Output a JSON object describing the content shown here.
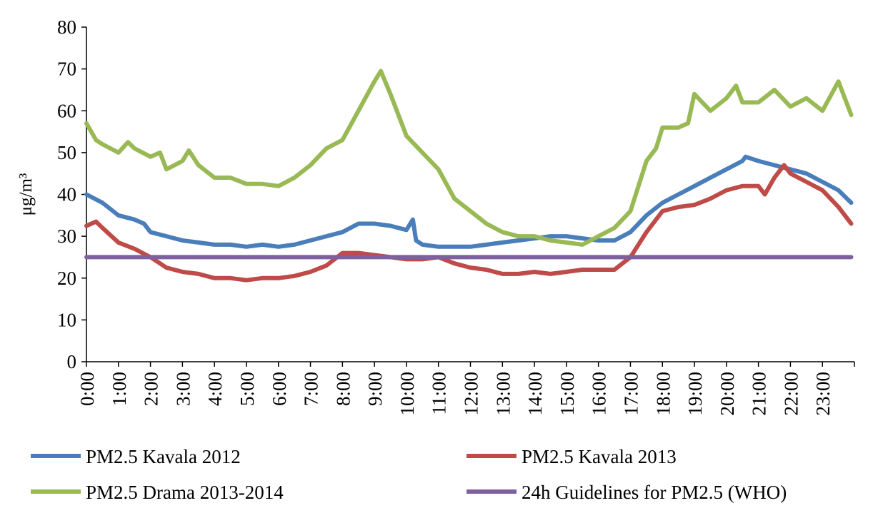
{
  "chart_data": {
    "type": "line",
    "xlabel": "",
    "ylabel": "μg/m³",
    "ylim": [
      0,
      80
    ],
    "xlim": [
      0,
      24
    ],
    "y_ticks": [
      "0",
      "10",
      "20",
      "30",
      "40",
      "50",
      "60",
      "70",
      "80"
    ],
    "x_ticks": [
      "0:00",
      "1:00",
      "2:00",
      "3:00",
      "4:00",
      "5:00",
      "6:00",
      "7:00",
      "8:00",
      "9:00",
      "10:00",
      "11:00",
      "12:00",
      "13:00",
      "14:00",
      "15:00",
      "16:00",
      "17:00",
      "18:00",
      "19:00",
      "20:00",
      "21:00",
      "22:00",
      "23:00"
    ],
    "grid": false,
    "legend_position": "bottom",
    "series": [
      {
        "name": "PM2.5 Kavala 2012",
        "color": "#4a7ebb",
        "x": [
          0,
          0.5,
          1.0,
          1.5,
          1.8,
          2.0,
          2.5,
          3.0,
          3.5,
          4.0,
          4.5,
          5.0,
          5.5,
          6.0,
          6.5,
          7.0,
          7.5,
          8.0,
          8.5,
          9.0,
          9.5,
          10.0,
          10.2,
          10.3,
          10.5,
          11.0,
          11.5,
          12.0,
          12.5,
          13.0,
          13.5,
          14.0,
          14.5,
          15.0,
          15.5,
          16.0,
          16.5,
          17.0,
          17.5,
          18.0,
          18.5,
          19.0,
          19.5,
          20.0,
          20.5,
          20.6,
          21.0,
          21.5,
          22.0,
          22.5,
          23.0,
          23.5,
          23.9
        ],
        "values": [
          40,
          38,
          35,
          34,
          33,
          31,
          30,
          29,
          28.5,
          28,
          28,
          27.5,
          28,
          27.5,
          28,
          29,
          30,
          31,
          33,
          33,
          32.5,
          31.5,
          34,
          29,
          28,
          27.5,
          27.5,
          27.5,
          28,
          28.5,
          29,
          29.5,
          30,
          30,
          29.5,
          29,
          29,
          31,
          35,
          38,
          40,
          42,
          44,
          46,
          48,
          49,
          48,
          47,
          46,
          45,
          43,
          41,
          38
        ]
      },
      {
        "name": "PM2.5 Kavala 2013",
        "color": "#be4b48",
        "x": [
          0,
          0.3,
          0.5,
          1.0,
          1.5,
          2.0,
          2.5,
          3.0,
          3.5,
          4.0,
          4.5,
          5.0,
          5.5,
          6.0,
          6.5,
          7.0,
          7.5,
          8.0,
          8.5,
          9.0,
          9.5,
          10.0,
          10.5,
          11.0,
          11.5,
          12.0,
          12.5,
          13.0,
          13.5,
          14.0,
          14.5,
          15.0,
          15.5,
          16.0,
          16.5,
          17.0,
          17.5,
          18.0,
          18.5,
          19.0,
          19.5,
          20.0,
          20.5,
          21.0,
          21.2,
          21.5,
          21.8,
          22.0,
          22.5,
          23.0,
          23.5,
          23.9
        ],
        "values": [
          32.5,
          33.5,
          32,
          28.5,
          27,
          25,
          22.5,
          21.5,
          21,
          20,
          20,
          19.5,
          20,
          20,
          20.5,
          21.5,
          23,
          26,
          26,
          25.5,
          25,
          24.5,
          24.5,
          25,
          23.5,
          22.5,
          22,
          21,
          21,
          21.5,
          21,
          21.5,
          22,
          22,
          22,
          25,
          31,
          36,
          37,
          37.5,
          39,
          41,
          42,
          42,
          40,
          44,
          47,
          45,
          43,
          41,
          37,
          33
        ]
      },
      {
        "name": "PM2.5 Drama 2013-2014",
        "color": "#98b954",
        "x": [
          0,
          0.3,
          0.5,
          1.0,
          1.3,
          1.5,
          2.0,
          2.3,
          2.5,
          3.0,
          3.2,
          3.5,
          4.0,
          4.5,
          5.0,
          5.5,
          6.0,
          6.5,
          7.0,
          7.5,
          8.0,
          8.5,
          9.0,
          9.2,
          9.5,
          10.0,
          10.5,
          11.0,
          11.5,
          12.0,
          12.5,
          13.0,
          13.5,
          14.0,
          14.5,
          15.0,
          15.5,
          16.0,
          16.5,
          17.0,
          17.5,
          17.8,
          18.0,
          18.5,
          18.8,
          19.0,
          19.5,
          20.0,
          20.3,
          20.5,
          21.0,
          21.5,
          22.0,
          22.5,
          23.0,
          23.5,
          23.9
        ],
        "values": [
          57,
          53,
          52,
          50,
          52.5,
          51,
          49,
          50,
          46,
          48,
          50.5,
          47,
          44,
          44,
          42.5,
          42.5,
          42,
          44,
          47,
          51,
          53,
          60,
          67,
          69.5,
          64,
          54,
          50,
          46,
          39,
          36,
          33,
          31,
          30,
          30,
          29,
          28.5,
          28,
          30,
          32,
          36,
          48,
          51,
          56,
          56,
          57,
          64,
          60,
          63,
          66,
          62,
          62,
          65,
          61,
          63,
          60,
          67,
          59
        ]
      },
      {
        "name": "24h Guidelines for PM2.5 (WHO)",
        "color": "#7d60a0",
        "x": [
          0,
          23.9
        ],
        "values": [
          25,
          25
        ]
      }
    ]
  }
}
